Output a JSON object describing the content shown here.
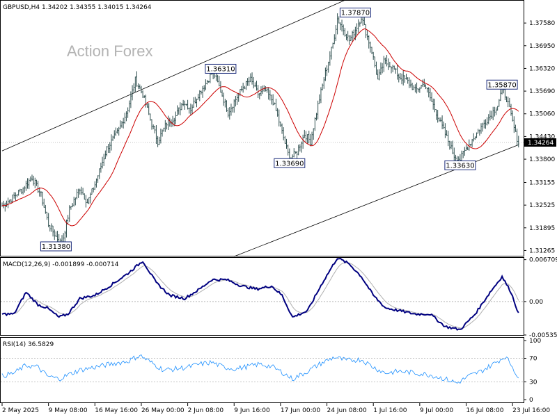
{
  "header": {
    "price_title": "GBPUSD,H4  1.34202 1.34355 1.34015 1.34264",
    "macd_title": "MACD(12,26,9) -0.001899 -0.000714",
    "rsi_title": "RSI(14) 36.5829"
  },
  "watermark": "Action Forex",
  "colors": {
    "candle": "#2f4f4f",
    "ma": "#cc0000",
    "macd_main": "#000080",
    "macd_signal": "#b0b0b0",
    "rsi": "#1e90ff",
    "channel": "#000000",
    "grid_dotted": "#888888"
  },
  "chart_data": [
    {
      "type": "candlestick",
      "pane": "price",
      "symbol": "GBPUSD",
      "timeframe": "H4",
      "ohlc_last": {
        "open": 1.34202,
        "high": 1.34355,
        "low": 1.34015,
        "close": 1.34264
      },
      "ylim": [
        1.311,
        1.382
      ],
      "y_ticks": [
        "1.37580",
        "1.36950",
        "1.36320",
        "1.35690",
        "1.35060",
        "1.34430",
        "1.33800",
        "1.33155",
        "1.32525",
        "1.31895",
        "1.31265"
      ],
      "current_price_label": "1.34264",
      "current_price": 1.34264,
      "x_tick_labels": [
        "2 May 2025",
        "9 May 08:00",
        "16 May 16:00",
        "26 May 00:00",
        "2 Jun 08:00",
        "9 Jun 16:00",
        "17 Jun 00:00",
        "24 Jun 08:00",
        "1 Jul 16:00",
        "9 Jul 00:00",
        "16 Jul 08:00",
        "23 Jul 16:00"
      ],
      "x_tick_positions": [
        0,
        31,
        62,
        93,
        124,
        155,
        186,
        217,
        248,
        279,
        310,
        341
      ],
      "bar_count": 346,
      "anchors": [
        [
          0,
          1.325
        ],
        [
          6,
          1.327
        ],
        [
          14,
          1.33
        ],
        [
          20,
          1.333
        ],
        [
          26,
          1.328
        ],
        [
          31,
          1.32
        ],
        [
          36,
          1.3165
        ],
        [
          40,
          1.3145
        ],
        [
          45,
          1.324
        ],
        [
          52,
          1.33
        ],
        [
          57,
          1.326
        ],
        [
          62,
          1.331
        ],
        [
          70,
          1.341
        ],
        [
          78,
          1.346
        ],
        [
          84,
          1.352
        ],
        [
          89,
          1.36
        ],
        [
          94,
          1.356
        ],
        [
          99,
          1.349
        ],
        [
          104,
          1.343
        ],
        [
          110,
          1.348
        ],
        [
          116,
          1.35
        ],
        [
          121,
          1.354
        ],
        [
          126,
          1.352
        ],
        [
          131,
          1.356
        ],
        [
          136,
          1.359
        ],
        [
          141,
          1.3625
        ],
        [
          146,
          1.357
        ],
        [
          151,
          1.351
        ],
        [
          155,
          1.354
        ],
        [
          161,
          1.358
        ],
        [
          166,
          1.36
        ],
        [
          171,
          1.356
        ],
        [
          176,
          1.357
        ],
        [
          181,
          1.354
        ],
        [
          184,
          1.35
        ],
        [
          188,
          1.344
        ],
        [
          192,
          1.338
        ],
        [
          197,
          1.34
        ],
        [
          202,
          1.345
        ],
        [
          206,
          1.343
        ],
        [
          211,
          1.353
        ],
        [
          216,
          1.362
        ],
        [
          221,
          1.37
        ],
        [
          224,
          1.377
        ],
        [
          228,
          1.374
        ],
        [
          232,
          1.371
        ],
        [
          236,
          1.374
        ],
        [
          240,
          1.3775
        ],
        [
          244,
          1.372
        ],
        [
          247,
          1.368
        ],
        [
          251,
          1.36
        ],
        [
          255,
          1.365
        ],
        [
          260,
          1.364
        ],
        [
          265,
          1.361
        ],
        [
          270,
          1.36
        ],
        [
          276,
          1.357
        ],
        [
          282,
          1.359
        ],
        [
          287,
          1.354
        ],
        [
          292,
          1.349
        ],
        [
          297,
          1.344
        ],
        [
          302,
          1.339
        ],
        [
          306,
          1.338
        ],
        [
          310,
          1.341
        ],
        [
          315,
          1.344
        ],
        [
          320,
          1.347
        ],
        [
          326,
          1.35
        ],
        [
          331,
          1.353
        ],
        [
          334,
          1.3575
        ],
        [
          337,
          1.355
        ],
        [
          340,
          1.35
        ],
        [
          343,
          1.345
        ],
        [
          345,
          1.3426
        ]
      ],
      "ma_period": 20,
      "callouts": [
        {
          "label": "1.31380",
          "bar": 36,
          "price": 1.3138
        },
        {
          "label": "1.36310",
          "bar": 146,
          "price": 1.3631
        },
        {
          "label": "1.33690",
          "bar": 192,
          "price": 1.3369
        },
        {
          "label": "1.37870",
          "bar": 236,
          "price": 1.3787
        },
        {
          "label": "1.33630",
          "bar": 306,
          "price": 1.3363
        },
        {
          "label": "1.35870",
          "bar": 334,
          "price": 1.3587
        }
      ],
      "channel": {
        "upper": [
          [
            0,
            1.3403
          ],
          [
            260,
            1.3878
          ]
        ],
        "lower": [
          [
            155,
            1.311
          ],
          [
            345,
            1.342
          ]
        ]
      }
    },
    {
      "type": "line",
      "pane": "macd",
      "name": "MACD(12,26,9)",
      "ylim": [
        -0.00535,
        0.007
      ],
      "y_ticks": [
        "0.006709",
        "0.00",
        "-0.00535"
      ],
      "last_main": -0.001899,
      "last_signal": -0.000714,
      "anchors": [
        [
          0,
          -0.002
        ],
        [
          8,
          -0.002
        ],
        [
          16,
          0.0015
        ],
        [
          24,
          -0.0005
        ],
        [
          30,
          -0.001
        ],
        [
          38,
          -0.0025
        ],
        [
          44,
          -0.002
        ],
        [
          52,
          0.0005
        ],
        [
          62,
          0.001
        ],
        [
          72,
          0.0025
        ],
        [
          84,
          0.0045
        ],
        [
          94,
          0.0065
        ],
        [
          103,
          0.003
        ],
        [
          112,
          0.001
        ],
        [
          122,
          0.0005
        ],
        [
          132,
          0.002
        ],
        [
          140,
          0.0035
        ],
        [
          150,
          0.0035
        ],
        [
          160,
          0.0025
        ],
        [
          170,
          0.002
        ],
        [
          180,
          0.0025
        ],
        [
          187,
          0.001
        ],
        [
          194,
          -0.0025
        ],
        [
          204,
          -0.0015
        ],
        [
          214,
          0.003
        ],
        [
          224,
          0.007
        ],
        [
          232,
          0.006
        ],
        [
          240,
          0.004
        ],
        [
          248,
          0.001
        ],
        [
          256,
          -0.001
        ],
        [
          266,
          -0.0015
        ],
        [
          276,
          -0.002
        ],
        [
          286,
          -0.002
        ],
        [
          296,
          -0.004
        ],
        [
          306,
          -0.0045
        ],
        [
          316,
          -0.002
        ],
        [
          326,
          0.0015
        ],
        [
          334,
          0.004
        ],
        [
          340,
          0.0015
        ],
        [
          345,
          -0.0019
        ]
      ]
    },
    {
      "type": "line",
      "pane": "rsi",
      "name": "RSI(14)",
      "ylim": [
        0,
        100
      ],
      "y_ticks": [
        "100",
        "70",
        "30",
        "0"
      ],
      "levels": [
        70,
        30
      ],
      "last_value": 36.5829,
      "anchors": [
        [
          0,
          40
        ],
        [
          8,
          45
        ],
        [
          16,
          58
        ],
        [
          24,
          55
        ],
        [
          30,
          40
        ],
        [
          38,
          35
        ],
        [
          44,
          42
        ],
        [
          52,
          50
        ],
        [
          62,
          55
        ],
        [
          72,
          60
        ],
        [
          84,
          65
        ],
        [
          92,
          75
        ],
        [
          100,
          62
        ],
        [
          108,
          50
        ],
        [
          116,
          52
        ],
        [
          124,
          55
        ],
        [
          132,
          60
        ],
        [
          140,
          63
        ],
        [
          148,
          55
        ],
        [
          156,
          52
        ],
        [
          164,
          56
        ],
        [
          172,
          60
        ],
        [
          180,
          56
        ],
        [
          188,
          45
        ],
        [
          194,
          35
        ],
        [
          202,
          45
        ],
        [
          212,
          60
        ],
        [
          222,
          72
        ],
        [
          230,
          66
        ],
        [
          240,
          68
        ],
        [
          248,
          55
        ],
        [
          256,
          45
        ],
        [
          266,
          48
        ],
        [
          276,
          45
        ],
        [
          286,
          42
        ],
        [
          296,
          35
        ],
        [
          304,
          28
        ],
        [
          312,
          40
        ],
        [
          320,
          48
        ],
        [
          328,
          60
        ],
        [
          336,
          73
        ],
        [
          340,
          60
        ],
        [
          345,
          36.6
        ]
      ]
    }
  ]
}
